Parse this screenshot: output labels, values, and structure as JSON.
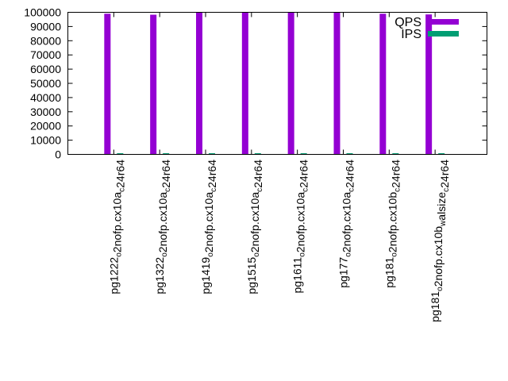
{
  "chart_data": {
    "type": "bar",
    "title": "",
    "xlabel": "",
    "ylabel": "",
    "ylim": [
      0,
      100000
    ],
    "yticks": [
      "0",
      "10000",
      "20000",
      "30000",
      "40000",
      "50000",
      "60000",
      "70000",
      "80000",
      "90000",
      "100000"
    ],
    "categories": [
      "pg1222_o2nofp.cx10a_c24r64",
      "pg1322_o2nofp.cx10a_c24r64",
      "pg1419_o2nofp.cx10a_c24r64",
      "pg1515_o2nofp.cx10a_c24r64",
      "pg1611_o2nofp.cx10a_c24r64",
      "pg177_o2nofp.cx10a_c24r64",
      "pg181_o2nofp.cx10b_c24r64",
      "pg181_o2nofp.cx10b_walsize_c24r64"
    ],
    "series": [
      {
        "name": "QPS",
        "color": "#9400d3",
        "values": [
          99000,
          98300,
          100500,
          100500,
          100500,
          100500,
          99000,
          98500
        ]
      },
      {
        "name": "IPS",
        "color": "#009e73",
        "values": [
          800,
          800,
          800,
          800,
          800,
          800,
          800,
          800
        ]
      }
    ],
    "legend": "top-right",
    "grid": false
  }
}
